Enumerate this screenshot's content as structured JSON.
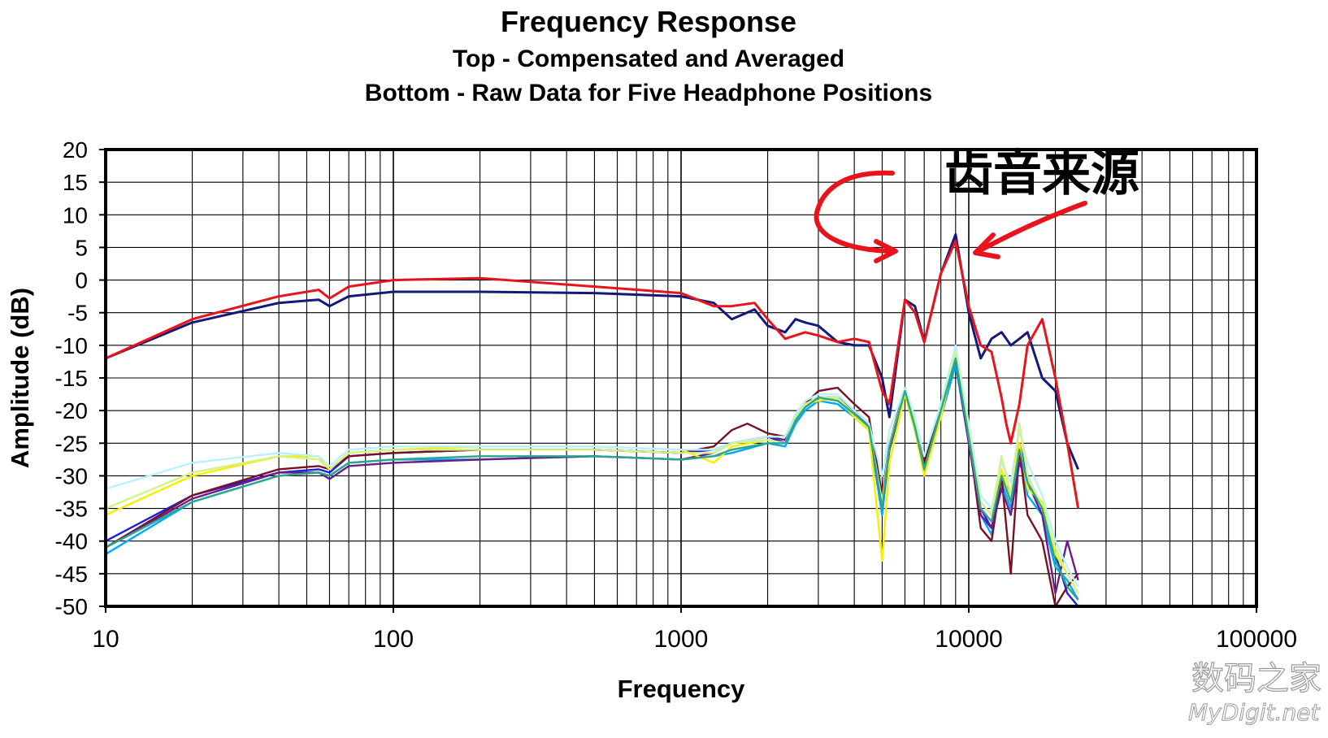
{
  "chart_data": {
    "type": "line",
    "title": "Frequency Response",
    "subtitle_1": "Top -  Compensated and Averaged",
    "subtitle_2": "Bottom - Raw Data for Five Headphone Positions",
    "xlabel": "Frequency",
    "ylabel": "Amplitude (dB)",
    "x_scale": "log",
    "xlim": [
      10,
      100000
    ],
    "ylim": [
      -50,
      20
    ],
    "x_tick_labels": [
      "10",
      "100",
      "1000",
      "10000",
      "100000"
    ],
    "y_tick_labels": [
      "20",
      "15",
      "10",
      "5",
      "0",
      "-5",
      "-10",
      "-15",
      "-20",
      "-25",
      "-30",
      "-35",
      "-40",
      "-45",
      "-50"
    ],
    "grid": true,
    "annotation": "齿音来源",
    "series": [
      {
        "color": "#e8131b",
        "x": [
          10,
          20,
          40,
          55,
          60,
          70,
          100,
          200,
          500,
          1000,
          1300,
          1500,
          1800,
          2000,
          2300,
          2700,
          3000,
          3500,
          4000,
          4500,
          5000,
          5300,
          6000,
          6500,
          7000,
          8000,
          9000,
          10000,
          11000,
          12000,
          13000,
          13500,
          14000,
          15000,
          16000,
          18000,
          20000,
          22000,
          24000
        ],
        "y": [
          -12,
          -6,
          -2.5,
          -1.5,
          -2.8,
          -1,
          0,
          0.3,
          -1,
          -2,
          -4,
          -4,
          -3.5,
          -6,
          -9,
          -8,
          -8.5,
          -9.5,
          -9,
          -9.5,
          -17,
          -19,
          -3,
          -5,
          -9.5,
          1,
          6,
          -4,
          -10,
          -11,
          -18,
          -22,
          -25,
          -19,
          -10,
          -6,
          -15,
          -25,
          -35
        ]
      },
      {
        "color": "#14187a",
        "x": [
          10,
          20,
          40,
          55,
          60,
          70,
          100,
          200,
          500,
          1000,
          1300,
          1500,
          1800,
          2000,
          2300,
          2500,
          2700,
          3000,
          3500,
          4000,
          4500,
          5000,
          5300,
          6000,
          6500,
          7000,
          8000,
          9000,
          10000,
          11000,
          12000,
          13000,
          13500,
          14000,
          15000,
          16000,
          18000,
          20000,
          22000,
          24000
        ],
        "y": [
          -12,
          -6.5,
          -3.5,
          -3,
          -4,
          -2.5,
          -1.8,
          -1.8,
          -2,
          -2.5,
          -3.5,
          -6,
          -4.5,
          -7,
          -8,
          -6,
          -6.5,
          -7,
          -9.5,
          -10,
          -10,
          -15,
          -21,
          -3,
          -4,
          -9.5,
          1,
          7,
          -5,
          -12,
          -9,
          -8,
          -9,
          -10,
          -9,
          -8,
          -15,
          -17,
          -25,
          -29
        ]
      },
      {
        "color": "#1f1fe0",
        "x": [
          10,
          20,
          40,
          55,
          60,
          70,
          100,
          200,
          500,
          1000,
          1300,
          1500,
          2000,
          2300,
          2500,
          2700,
          3000,
          3500,
          4000,
          4500,
          5000,
          5300,
          6000,
          6500,
          7000,
          8000,
          9000,
          10000,
          11000,
          12000,
          13000,
          14000,
          15000,
          16000,
          18000,
          20000,
          22000,
          24000
        ],
        "y": [
          -40,
          -33,
          -29.5,
          -29,
          -29.5,
          -27,
          -26.5,
          -26,
          -26,
          -26.5,
          -26,
          -25,
          -24,
          -25,
          -21,
          -19.5,
          -18,
          -18,
          -20,
          -22,
          -34,
          -25,
          -17,
          -22,
          -28,
          -20,
          -11,
          -24,
          -35,
          -38,
          -30,
          -33,
          -25,
          -30,
          -35,
          -42,
          -48,
          -50
        ]
      },
      {
        "color": "#00a8ff",
        "x": [
          10,
          20,
          40,
          55,
          60,
          70,
          100,
          200,
          500,
          1000,
          1300,
          1500,
          2000,
          2300,
          2500,
          2700,
          3000,
          3500,
          4000,
          4500,
          5000,
          5300,
          6000,
          6500,
          7000,
          8000,
          9000,
          10000,
          11000,
          12000,
          13000,
          14000,
          15000,
          16000,
          18000,
          20000,
          22000,
          24000
        ],
        "y": [
          -42,
          -34,
          -30,
          -29.5,
          -30,
          -28,
          -27.5,
          -27.5,
          -27,
          -27.5,
          -27,
          -26.5,
          -25,
          -25.5,
          -22,
          -20,
          -18.5,
          -19,
          -21,
          -23,
          -36,
          -26,
          -17.5,
          -23,
          -29,
          -21,
          -13,
          -25,
          -36,
          -39,
          -31,
          -35,
          -26,
          -33,
          -36,
          -44,
          -46,
          -49
        ]
      },
      {
        "color": "#7a1022",
        "x": [
          10,
          20,
          40,
          55,
          60,
          70,
          100,
          200,
          500,
          1000,
          1300,
          1500,
          1700,
          2000,
          2300,
          2500,
          2700,
          3000,
          3500,
          4000,
          4500,
          5000,
          5300,
          6000,
          6500,
          7000,
          8000,
          9000,
          10000,
          11000,
          12000,
          13000,
          14000,
          15000,
          16000,
          18000,
          20000,
          22000,
          24000
        ],
        "y": [
          -41,
          -33,
          -29,
          -28.5,
          -29,
          -27,
          -26.5,
          -26,
          -26,
          -26.5,
          -25.5,
          -23,
          -22,
          -23.5,
          -24,
          -21,
          -19,
          -17,
          -16.5,
          -19,
          -21,
          -33,
          -25,
          -16.5,
          -22,
          -28,
          -19,
          -12,
          -24,
          -38,
          -40,
          -30,
          -45,
          -26,
          -36,
          -40,
          -50,
          -47,
          -45
        ]
      },
      {
        "color": "#6b1c8a",
        "x": [
          10,
          20,
          40,
          55,
          60,
          70,
          100,
          200,
          500,
          1000,
          1300,
          1500,
          2000,
          2300,
          2500,
          2700,
          3000,
          3500,
          4000,
          4500,
          5000,
          5300,
          6000,
          6500,
          7000,
          8000,
          9000,
          10000,
          11000,
          12000,
          13000,
          14000,
          15000,
          16000,
          18000,
          20000,
          22000,
          24000
        ],
        "y": [
          -41,
          -33.5,
          -29.5,
          -29.5,
          -30.5,
          -28.5,
          -28,
          -27.5,
          -27,
          -27.5,
          -26.5,
          -25,
          -24,
          -24.5,
          -21,
          -19,
          -18,
          -18,
          -20,
          -22.5,
          -35,
          -26,
          -17,
          -23,
          -29,
          -20,
          -12,
          -25,
          -36,
          -38,
          -32,
          -36,
          -28,
          -31,
          -36,
          -48,
          -40,
          -46
        ]
      },
      {
        "color": "#f4f000",
        "x": [
          10,
          20,
          40,
          55,
          60,
          70,
          100,
          200,
          500,
          1000,
          1300,
          1500,
          2000,
          2300,
          2500,
          2700,
          3000,
          3500,
          4000,
          4500,
          5000,
          5300,
          6000,
          6500,
          7000,
          8000,
          9000,
          10000,
          11000,
          12000,
          13000,
          14000,
          15000,
          16000,
          18000,
          20000,
          22000,
          24000
        ],
        "y": [
          -36,
          -30,
          -27,
          -27,
          -29,
          -26.5,
          -26,
          -25.5,
          -25.5,
          -26,
          -28,
          -25.5,
          -24.5,
          -25,
          -21,
          -19,
          -18.5,
          -18,
          -21,
          -23,
          -43,
          -28,
          -17.5,
          -23,
          -30,
          -21,
          -11,
          -24,
          -35,
          -37,
          -29,
          -34,
          -25,
          -32,
          -34,
          -42,
          -45,
          -48
        ]
      },
      {
        "color": "#b8f2ff",
        "x": [
          10,
          20,
          40,
          55,
          60,
          70,
          100,
          200,
          500,
          1000,
          1300,
          1500,
          2000,
          2300,
          2500,
          2700,
          3000,
          3500,
          4000,
          4500,
          5000,
          5300,
          6000,
          6500,
          7000,
          8000,
          9000,
          10000,
          11000,
          12000,
          13000,
          14000,
          15000,
          16000,
          18000,
          20000,
          22000,
          24000
        ],
        "y": [
          -32,
          -28,
          -26.5,
          -27,
          -28.5,
          -26,
          -25.5,
          -25.5,
          -25.5,
          -26,
          -26,
          -25,
          -24,
          -24,
          -20.5,
          -18.5,
          -17.5,
          -17.5,
          -20,
          -22,
          -30,
          -23,
          -16.5,
          -21,
          -27,
          -19,
          -10,
          -22,
          -33,
          -35,
          -28,
          -31,
          -23,
          -28,
          -33,
          -40,
          -44,
          -47
        ]
      },
      {
        "color": "#d4f28a",
        "x": [
          10,
          20,
          40,
          55,
          60,
          70,
          100,
          200,
          500,
          1000,
          1300,
          1500,
          2000,
          2300,
          2500,
          2700,
          3000,
          3500,
          4000,
          4500,
          5000,
          5300,
          6000,
          6500,
          7000,
          8000,
          9000,
          10000,
          11000,
          12000,
          13000,
          14000,
          15000,
          16000,
          18000,
          20000,
          22000,
          24000
        ],
        "y": [
          -35,
          -29.5,
          -27,
          -27.5,
          -29,
          -26.5,
          -26,
          -26,
          -26,
          -26.5,
          -26.5,
          -25,
          -24.5,
          -25,
          -21,
          -19,
          -18,
          -18,
          -20.5,
          -22.5,
          -34,
          -25,
          -17,
          -22,
          -29,
          -20,
          -11,
          -23,
          -34,
          -36,
          -27,
          -33,
          -22,
          -30,
          -35,
          -41,
          -45,
          -48
        ]
      },
      {
        "color": "#2aa78a",
        "x": [
          10,
          20,
          40,
          55,
          60,
          70,
          100,
          200,
          500,
          1000,
          1300,
          1500,
          2000,
          2300,
          2500,
          2700,
          3000,
          3500,
          4000,
          4500,
          5000,
          5300,
          6000,
          6500,
          7000,
          8000,
          9000,
          10000,
          11000,
          12000,
          13000,
          14000,
          15000,
          16000,
          18000,
          20000,
          22000,
          24000
        ],
        "y": [
          -41,
          -34,
          -30,
          -29.5,
          -30,
          -28,
          -27.5,
          -27,
          -27,
          -27.5,
          -27,
          -26,
          -25,
          -25,
          -21.5,
          -19.5,
          -18,
          -18.5,
          -20.5,
          -22.5,
          -35,
          -25.5,
          -17,
          -22.5,
          -29,
          -20,
          -12,
          -24,
          -35,
          -37,
          -30,
          -34,
          -26,
          -31,
          -35,
          -43,
          -47,
          -49
        ]
      }
    ]
  },
  "watermark": {
    "line1": "数码之家",
    "line2": "MyDigit.net"
  }
}
